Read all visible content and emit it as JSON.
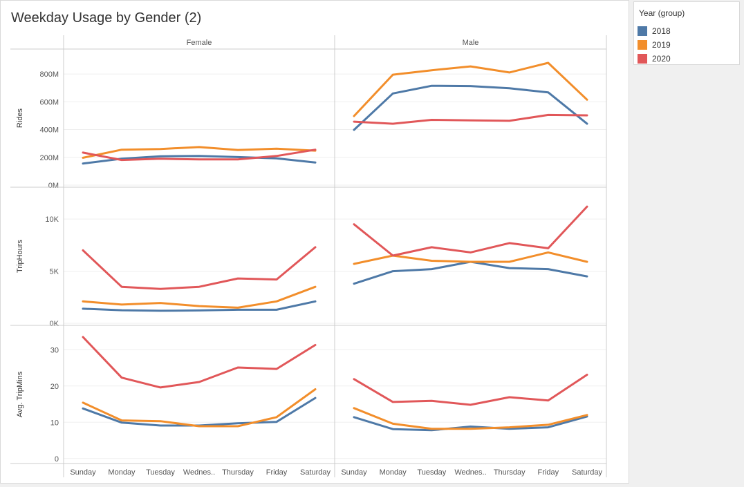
{
  "title": "Weekday Usage by Gender (2)",
  "legend": {
    "title": "Year (group)",
    "items": [
      {
        "label": "2018",
        "color": "#4e79a7"
      },
      {
        "label": "2019",
        "color": "#f28e2b"
      },
      {
        "label": "2020",
        "color": "#e15759"
      }
    ]
  },
  "chart_data": {
    "type": "line",
    "columns": [
      "Female",
      "Male"
    ],
    "categories": [
      "Sunday",
      "Monday",
      "Tuesday",
      "Wednes..",
      "Thursday",
      "Friday",
      "Saturday"
    ],
    "series_names": [
      "2018",
      "2019",
      "2020"
    ],
    "rows": [
      {
        "measure": "Rides",
        "ylim": [
          0,
          900
        ],
        "ticks": [
          {
            "v": 0,
            "label": "0M"
          },
          {
            "v": 200,
            "label": "200M"
          },
          {
            "v": 400,
            "label": "400M"
          },
          {
            "v": 600,
            "label": "600M"
          },
          {
            "v": 800,
            "label": "800M"
          }
        ],
        "values": {
          "Female": {
            "2018": [
              155,
              190,
              208,
              210,
              202,
              193,
              163
            ],
            "2019": [
              197,
              255,
              260,
              274,
              253,
              262,
              248
            ],
            "2020": [
              234,
              181,
              190,
              185,
              185,
              210,
              255
            ]
          },
          "Male": {
            "2018": [
              398,
              660,
              715,
              713,
              697,
              668,
              442
            ],
            "2019": [
              497,
              795,
              827,
              855,
              811,
              880,
              615
            ],
            "2020": [
              457,
              442,
              470,
              466,
              463,
              505,
              502
            ]
          }
        }
      },
      {
        "measure": "TripHours",
        "ylim": [
          0,
          12000
        ],
        "ticks": [
          {
            "v": 0,
            "label": "0K"
          },
          {
            "v": 5000,
            "label": "5K"
          },
          {
            "v": 10000,
            "label": "10K"
          }
        ],
        "values": {
          "Female": {
            "2018": [
              1400,
              1250,
              1200,
              1230,
              1300,
              1300,
              2100
            ],
            "2019": [
              2100,
              1800,
              1950,
              1650,
              1500,
              2100,
              3500
            ],
            "2020": [
              7000,
              3500,
              3300,
              3500,
              4300,
              4200,
              7300
            ]
          },
          "Male": {
            "2018": [
              3800,
              5000,
              5200,
              5900,
              5300,
              5200,
              4500
            ],
            "2019": [
              5700,
              6500,
              6000,
              5900,
              5900,
              6800,
              5900
            ],
            "2020": [
              9500,
              6500,
              7300,
              6800,
              7700,
              7200,
              11200
            ]
          }
        }
      },
      {
        "measure": "Avg. TripMins",
        "ylim": [
          -1,
          35
        ],
        "ticks": [
          {
            "v": 0,
            "label": "0"
          },
          {
            "v": 10,
            "label": "10"
          },
          {
            "v": 20,
            "label": "20"
          },
          {
            "v": 30,
            "label": "30"
          }
        ],
        "values": {
          "Female": {
            "2018": [
              13.8,
              9.9,
              9.1,
              9.1,
              9.7,
              10.1,
              16.7
            ],
            "2019": [
              15.4,
              10.5,
              10.3,
              8.9,
              8.9,
              11.4,
              19.1
            ],
            "2020": [
              33.5,
              22.3,
              19.6,
              21.1,
              25.1,
              24.7,
              31.3
            ]
          },
          "Male": {
            "2018": [
              11.4,
              8.1,
              7.8,
              8.8,
              8.2,
              8.6,
              11.6
            ],
            "2019": [
              13.9,
              9.6,
              8.2,
              8.2,
              8.6,
              9.3,
              12.0
            ],
            "2020": [
              21.9,
              15.6,
              15.9,
              14.8,
              16.9,
              16.0,
              23.1
            ]
          }
        }
      }
    ]
  }
}
